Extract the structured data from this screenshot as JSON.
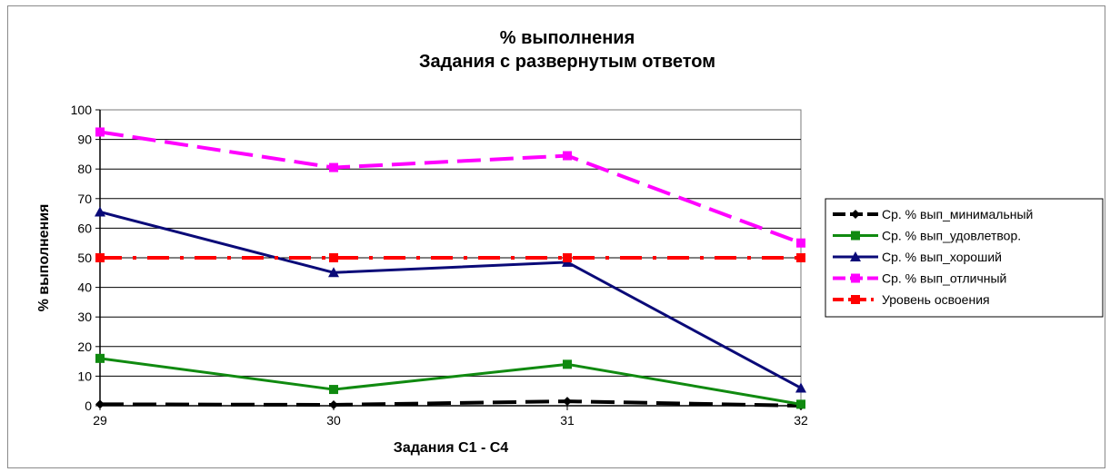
{
  "chart_data": {
    "type": "line",
    "title": "% выполнения",
    "subtitle": "Задания с развернутым ответом",
    "xlabel": "Задания С1 - С4",
    "ylabel": "% выполнения",
    "categories": [
      "29",
      "30",
      "31",
      "32"
    ],
    "ylim": [
      0,
      100
    ],
    "yticks": [
      "0",
      "10",
      "20",
      "30",
      "40",
      "50",
      "60",
      "70",
      "80",
      "90",
      "100"
    ],
    "grid": true,
    "legend_position": "right",
    "series": [
      {
        "name": "Ср. % вып_минимальный",
        "values": [
          0.5,
          0.3,
          1.5,
          0
        ],
        "color": "#000000",
        "marker": "diamond",
        "dash": "long-dash"
      },
      {
        "name": "Ср. % вып_удовлетвор.",
        "values": [
          16,
          5.5,
          14,
          0.5
        ],
        "color": "#108a10",
        "marker": "square",
        "dash": "solid"
      },
      {
        "name": "Ср. % вып_хороший",
        "values": [
          65.5,
          45,
          48.5,
          6
        ],
        "color": "#0a0a78",
        "marker": "triangle",
        "dash": "solid"
      },
      {
        "name": "Ср. % вып_отличный",
        "values": [
          92.5,
          80.5,
          84.5,
          55
        ],
        "color": "#ff00ff",
        "marker": "square",
        "dash": "long-dash"
      },
      {
        "name": "Уровень освоения",
        "values": [
          50,
          50,
          50,
          50
        ],
        "color": "#ff0000",
        "marker": "square",
        "dash": "dash-dot"
      }
    ]
  }
}
